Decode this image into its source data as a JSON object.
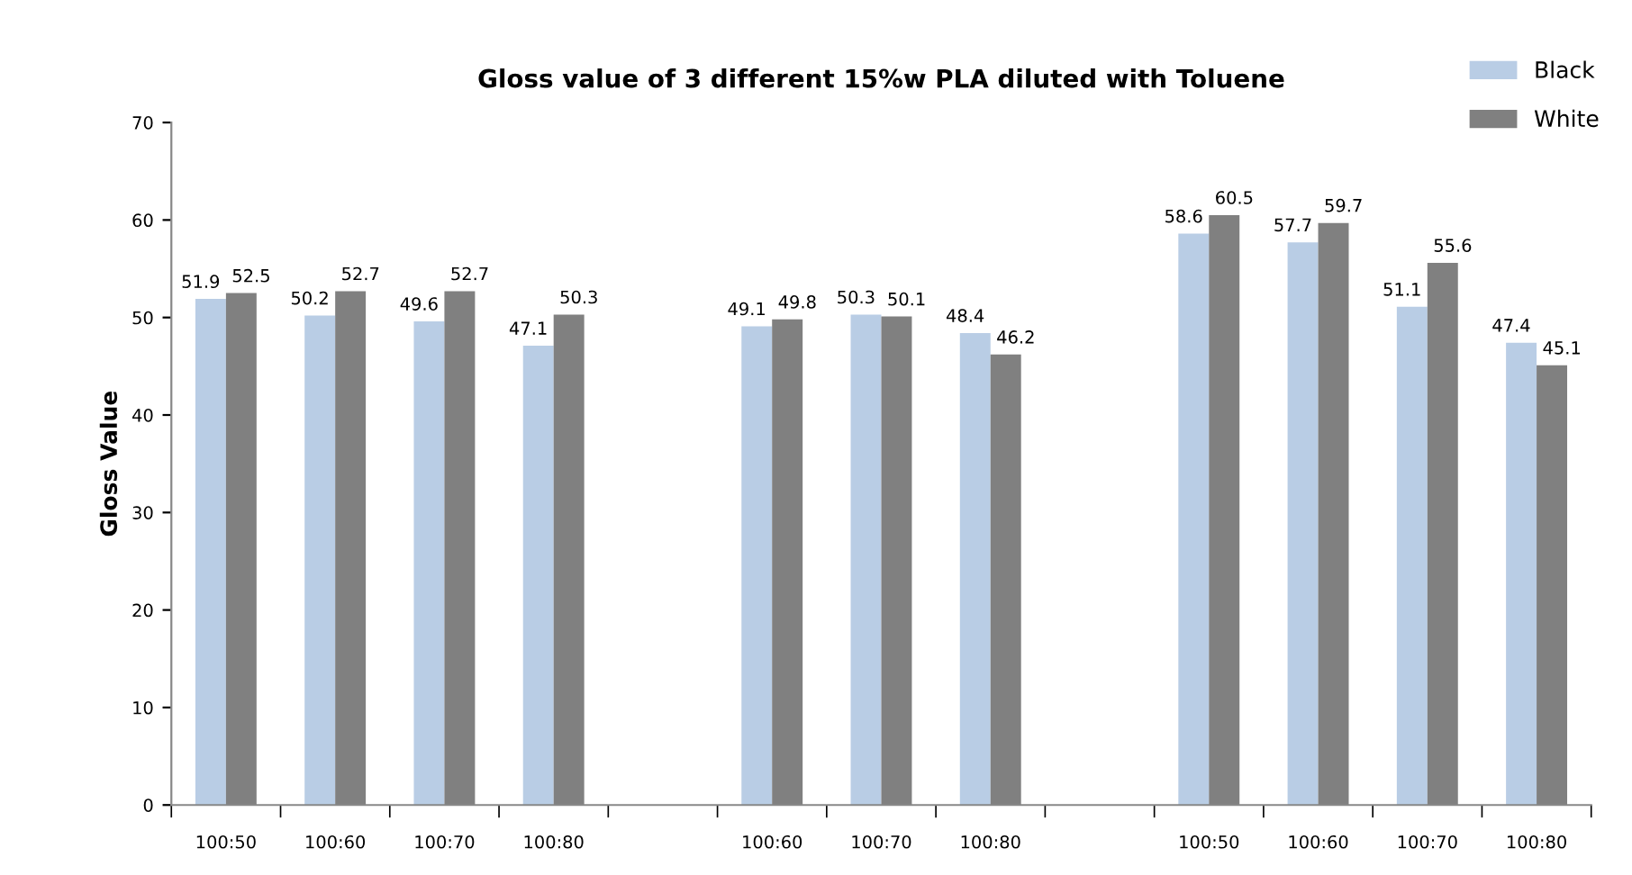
{
  "chart_data": {
    "type": "bar",
    "title": "Gloss value of 3 different 15%w PLA diluted with Toluene",
    "ylabel": "Gloss Value",
    "categories": [
      "100:50",
      "100:60",
      "100:70",
      "100:80",
      null,
      "100:60",
      "100:70",
      "100:80",
      null,
      "100:50",
      "100:60",
      "100:70",
      "100:80"
    ],
    "series": [
      {
        "name": "Black",
        "color": "#b9cde5",
        "values": [
          51.9,
          50.2,
          49.6,
          47.1,
          null,
          49.1,
          50.3,
          48.4,
          null,
          58.6,
          57.7,
          51.1,
          47.4
        ]
      },
      {
        "name": "White",
        "color": "#808080",
        "values": [
          52.5,
          52.7,
          52.7,
          50.3,
          null,
          49.8,
          50.1,
          46.2,
          null,
          60.5,
          59.7,
          55.6,
          45.1
        ]
      }
    ],
    "ylim": [
      0,
      70
    ],
    "yticks": [
      0,
      10,
      20,
      30,
      40,
      50,
      60,
      70
    ],
    "grid": false,
    "legend": "top right",
    "data_labels": true
  }
}
